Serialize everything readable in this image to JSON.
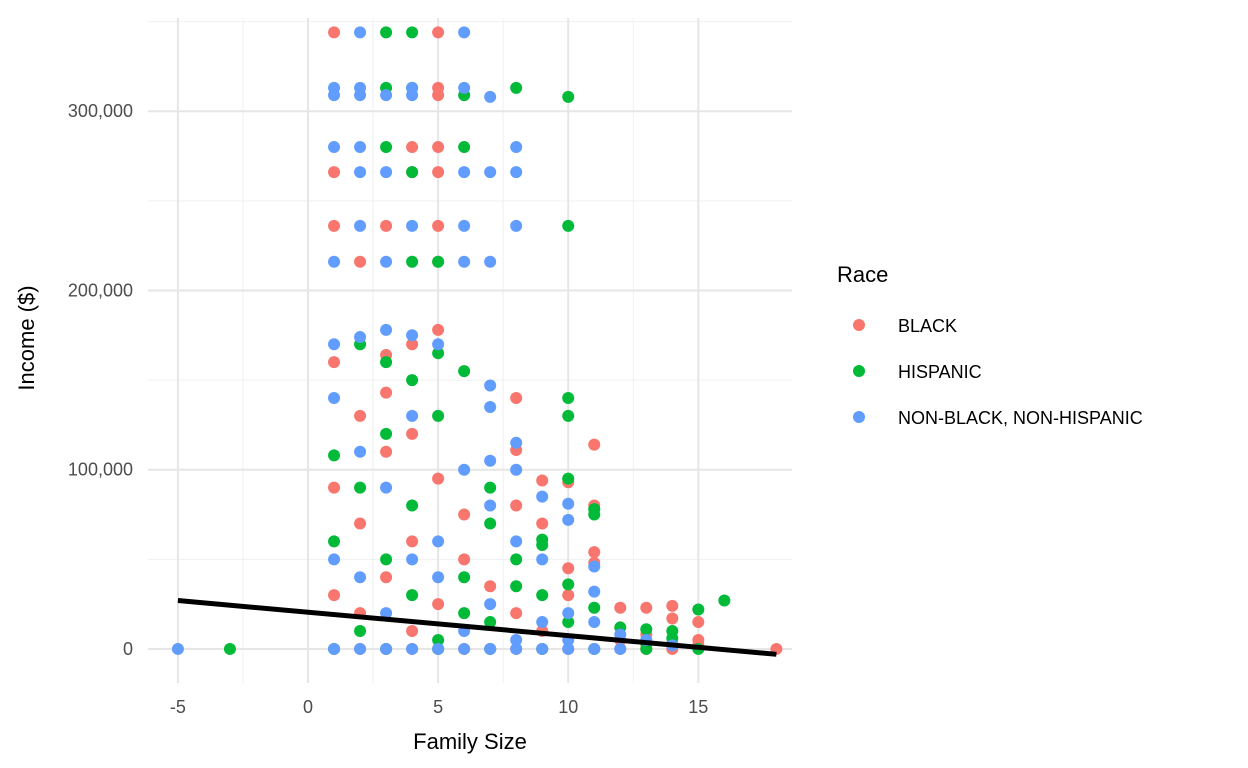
{
  "chart_data": {
    "type": "scatter",
    "xlabel": "Family Size",
    "ylabel": "Income ($)",
    "xlim": [
      -6.15,
      18.6
    ],
    "ylim": [
      -19000,
      352000
    ],
    "x_ticks": [
      -5,
      0,
      5,
      10,
      15
    ],
    "x_tick_labels": [
      "-5",
      "0",
      "5",
      "10",
      "15"
    ],
    "y_ticks": [
      0,
      100000,
      200000,
      300000
    ],
    "y_tick_labels": [
      "0",
      "100,000",
      "200,000",
      "300,000"
    ],
    "grid": true,
    "legend": {
      "title": "Race",
      "position": "right"
    },
    "series": [
      {
        "name": "BLACK",
        "color": "#F8766D",
        "points": [
          [
            1,
            344000
          ],
          [
            5,
            344000
          ],
          [
            5,
            313000
          ],
          [
            5,
            309000
          ],
          [
            4,
            280000
          ],
          [
            5,
            280000
          ],
          [
            1,
            266000
          ],
          [
            4,
            266000
          ],
          [
            5,
            266000
          ],
          [
            1,
            236000
          ],
          [
            3,
            236000
          ],
          [
            5,
            236000
          ],
          [
            2,
            216000
          ],
          [
            5,
            216000
          ],
          [
            5,
            178000
          ],
          [
            1,
            160000
          ],
          [
            3,
            164000
          ],
          [
            4,
            170000
          ],
          [
            3,
            143000
          ],
          [
            2,
            130000
          ],
          [
            4,
            120000
          ],
          [
            8,
            140000
          ],
          [
            8,
            111000
          ],
          [
            11,
            114000
          ],
          [
            9,
            94000
          ],
          [
            10,
            93000
          ],
          [
            8,
            80000
          ],
          [
            9,
            70000
          ],
          [
            10,
            45000
          ],
          [
            11,
            80000
          ],
          [
            11,
            54000
          ],
          [
            11,
            48000
          ],
          [
            12,
            23000
          ],
          [
            13,
            23000
          ],
          [
            14,
            24000
          ],
          [
            14,
            17000
          ],
          [
            15,
            15000
          ],
          [
            18,
            0
          ],
          [
            1,
            90000
          ],
          [
            2,
            70000
          ],
          [
            3,
            110000
          ],
          [
            4,
            60000
          ],
          [
            5,
            95000
          ],
          [
            6,
            50000
          ],
          [
            1,
            30000
          ],
          [
            2,
            20000
          ],
          [
            3,
            40000
          ],
          [
            4,
            10000
          ],
          [
            5,
            25000
          ],
          [
            6,
            75000
          ],
          [
            7,
            35000
          ],
          [
            8,
            20000
          ],
          [
            9,
            10000
          ],
          [
            10,
            30000
          ],
          [
            12,
            5000
          ],
          [
            13,
            8000
          ],
          [
            14,
            3000
          ],
          [
            15,
            5000
          ],
          [
            1,
            0
          ],
          [
            2,
            0
          ],
          [
            3,
            0
          ],
          [
            4,
            0
          ],
          [
            5,
            0
          ],
          [
            6,
            0
          ],
          [
            7,
            0
          ],
          [
            8,
            0
          ],
          [
            9,
            0
          ],
          [
            10,
            0
          ],
          [
            11,
            0
          ],
          [
            12,
            0
          ],
          [
            13,
            0
          ],
          [
            14,
            0
          ],
          [
            15,
            2000
          ]
        ]
      },
      {
        "name": "HISPANIC",
        "color": "#00BA38",
        "points": [
          [
            3,
            344000
          ],
          [
            4,
            344000
          ],
          [
            3,
            313000
          ],
          [
            4,
            313000
          ],
          [
            6,
            309000
          ],
          [
            8,
            313000
          ],
          [
            10,
            308000
          ],
          [
            3,
            280000
          ],
          [
            6,
            280000
          ],
          [
            4,
            266000
          ],
          [
            10,
            236000
          ],
          [
            4,
            216000
          ],
          [
            5,
            216000
          ],
          [
            5,
            165000
          ],
          [
            6,
            155000
          ],
          [
            2,
            170000
          ],
          [
            3,
            160000
          ],
          [
            4,
            150000
          ],
          [
            10,
            140000
          ],
          [
            10,
            130000
          ],
          [
            1,
            108000
          ],
          [
            7,
            90000
          ],
          [
            10,
            95000
          ],
          [
            11,
            78000
          ],
          [
            11,
            75000
          ],
          [
            9,
            61000
          ],
          [
            9,
            58000
          ],
          [
            10,
            36000
          ],
          [
            11,
            23000
          ],
          [
            13,
            11000
          ],
          [
            14,
            10000
          ],
          [
            15,
            22000
          ],
          [
            16,
            27000
          ],
          [
            15,
            0
          ],
          [
            -3,
            0
          ],
          [
            1,
            60000
          ],
          [
            2,
            90000
          ],
          [
            3,
            120000
          ],
          [
            4,
            80000
          ],
          [
            5,
            130000
          ],
          [
            6,
            40000
          ],
          [
            7,
            70000
          ],
          [
            8,
            50000
          ],
          [
            9,
            30000
          ],
          [
            10,
            15000
          ],
          [
            12,
            12000
          ],
          [
            13,
            3000
          ],
          [
            14,
            6000
          ],
          [
            2,
            10000
          ],
          [
            3,
            50000
          ],
          [
            4,
            30000
          ],
          [
            5,
            5000
          ],
          [
            6,
            20000
          ],
          [
            7,
            15000
          ],
          [
            8,
            35000
          ],
          [
            1,
            0
          ],
          [
            3,
            0
          ],
          [
            5,
            0
          ],
          [
            7,
            0
          ],
          [
            9,
            0
          ],
          [
            11,
            0
          ],
          [
            13,
            0
          ]
        ]
      },
      {
        "name": "NON-BLACK, NON-HISPANIC",
        "color": "#619CFF",
        "points": [
          [
            2,
            344000
          ],
          [
            6,
            344000
          ],
          [
            1,
            313000
          ],
          [
            2,
            313000
          ],
          [
            4,
            313000
          ],
          [
            6,
            313000
          ],
          [
            1,
            309000
          ],
          [
            2,
            309000
          ],
          [
            3,
            309000
          ],
          [
            4,
            309000
          ],
          [
            7,
            308000
          ],
          [
            1,
            280000
          ],
          [
            2,
            280000
          ],
          [
            8,
            280000
          ],
          [
            2,
            266000
          ],
          [
            3,
            266000
          ],
          [
            6,
            266000
          ],
          [
            7,
            266000
          ],
          [
            8,
            266000
          ],
          [
            2,
            236000
          ],
          [
            4,
            236000
          ],
          [
            6,
            236000
          ],
          [
            8,
            236000
          ],
          [
            1,
            216000
          ],
          [
            3,
            216000
          ],
          [
            6,
            216000
          ],
          [
            7,
            216000
          ],
          [
            3,
            178000
          ],
          [
            2,
            174000
          ],
          [
            4,
            175000
          ],
          [
            5,
            170000
          ],
          [
            1,
            170000
          ],
          [
            7,
            147000
          ],
          [
            7,
            135000
          ],
          [
            8,
            115000
          ],
          [
            7,
            105000
          ],
          [
            8,
            100000
          ],
          [
            9,
            85000
          ],
          [
            10,
            81000
          ],
          [
            10,
            72000
          ],
          [
            11,
            46000
          ],
          [
            11,
            32000
          ],
          [
            1,
            140000
          ],
          [
            2,
            110000
          ],
          [
            3,
            90000
          ],
          [
            4,
            130000
          ],
          [
            5,
            60000
          ],
          [
            6,
            100000
          ],
          [
            7,
            80000
          ],
          [
            8,
            60000
          ],
          [
            9,
            50000
          ],
          [
            10,
            20000
          ],
          [
            11,
            15000
          ],
          [
            12,
            8000
          ],
          [
            13,
            5000
          ],
          [
            14,
            2000
          ],
          [
            1,
            50000
          ],
          [
            2,
            40000
          ],
          [
            3,
            20000
          ],
          [
            4,
            50000
          ],
          [
            5,
            40000
          ],
          [
            6,
            10000
          ],
          [
            7,
            25000
          ],
          [
            8,
            5000
          ],
          [
            9,
            15000
          ],
          [
            10,
            5000
          ],
          [
            -5,
            0
          ],
          [
            1,
            0
          ],
          [
            2,
            0
          ],
          [
            3,
            0
          ],
          [
            4,
            0
          ],
          [
            5,
            0
          ],
          [
            6,
            0
          ],
          [
            7,
            0
          ],
          [
            8,
            0
          ],
          [
            9,
            0
          ],
          [
            10,
            0
          ],
          [
            11,
            0
          ],
          [
            12,
            0
          ]
        ]
      }
    ],
    "trend_line": {
      "x": [
        -5,
        18
      ],
      "y": [
        27000,
        -3000
      ],
      "color": "#000000"
    }
  }
}
